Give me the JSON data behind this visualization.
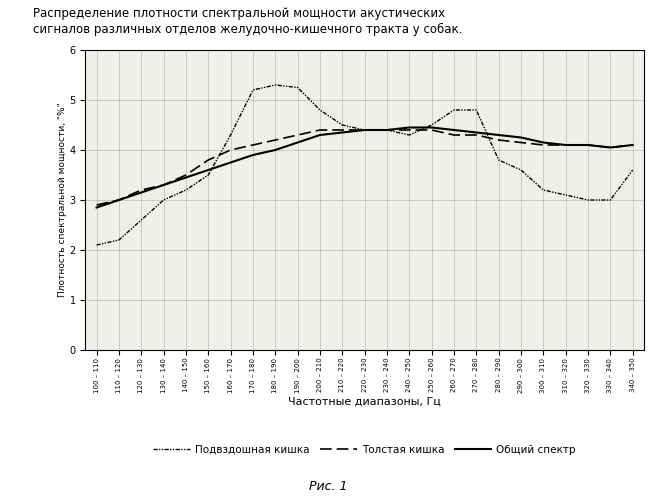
{
  "title_line1": "Распределение плотности спектральной мощности акустических",
  "title_line2": "сигналов различных отделов желудочно-кишечного тракта у собак.",
  "xlabel": "Частотные диапазоны, Гц",
  "ylabel": "Плотность спектральной мощности, \"%\"",
  "figure_caption": "Рис. 1",
  "x_labels": [
    "100 – 110",
    "110 – 120",
    "120 – 130",
    "130 – 140",
    "140 – 150",
    "150 – 160",
    "160 – 170",
    "170 – 180",
    "180 – 190",
    "190 – 200",
    "200 – 210",
    "210 – 220",
    "220 – 230",
    "230 – 240",
    "240 – 250",
    "250 – 260",
    "260 – 270",
    "270 – 280",
    "280 – 290",
    "290 – 300",
    "300 – 310",
    "310 – 320",
    "320 – 330",
    "330 – 340",
    "340 – 350"
  ],
  "podvzdoshnaya": [
    2.1,
    2.2,
    2.6,
    3.0,
    3.2,
    3.5,
    4.3,
    5.2,
    5.3,
    5.25,
    4.8,
    4.5,
    4.4,
    4.4,
    4.3,
    4.5,
    4.8,
    4.8,
    3.8,
    3.6,
    3.2,
    3.1,
    3.0,
    3.0,
    3.6
  ],
  "tolstaya": [
    2.9,
    3.0,
    3.2,
    3.3,
    3.5,
    3.8,
    4.0,
    4.1,
    4.2,
    4.3,
    4.4,
    4.4,
    4.4,
    4.4,
    4.4,
    4.4,
    4.3,
    4.3,
    4.2,
    4.15,
    4.1,
    4.1,
    4.1,
    4.05,
    4.1
  ],
  "obshiy": [
    2.85,
    3.0,
    3.15,
    3.3,
    3.45,
    3.6,
    3.75,
    3.9,
    4.0,
    4.15,
    4.3,
    4.35,
    4.4,
    4.4,
    4.45,
    4.45,
    4.4,
    4.35,
    4.3,
    4.25,
    4.15,
    4.1,
    4.1,
    4.05,
    4.1
  ],
  "ylim": [
    0,
    6
  ],
  "yticks": [
    0,
    1,
    2,
    3,
    4,
    5,
    6
  ],
  "legend_labels": [
    "Подвздошная кишка",
    "Толстая кишка",
    "Общий спектр"
  ],
  "bg_color": "#f0f0eb"
}
